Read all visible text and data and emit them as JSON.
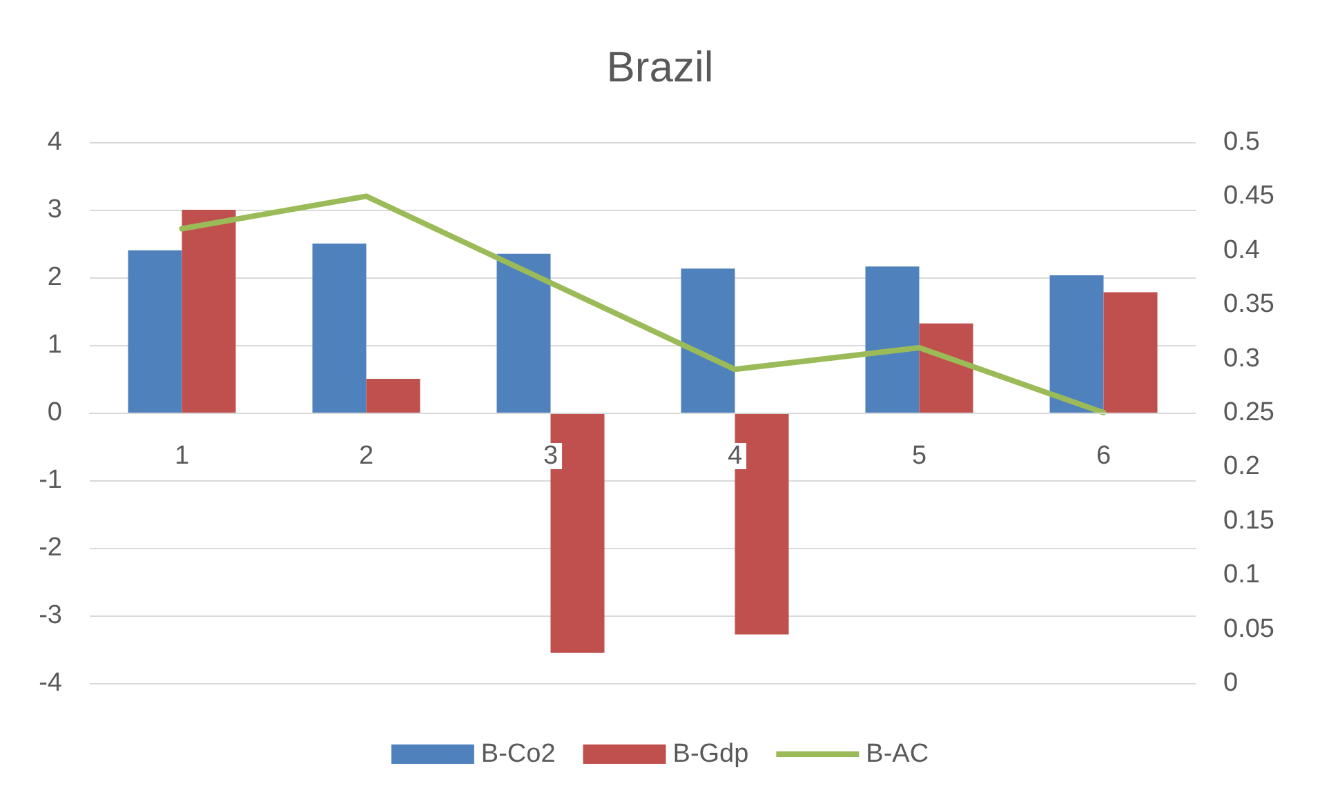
{
  "chart_data": {
    "type": "bar",
    "title": "Brazil",
    "categories": [
      "1",
      "2",
      "3",
      "4",
      "5",
      "6"
    ],
    "series": [
      {
        "name": "B-Co2",
        "color": "#4f81bd",
        "values": [
          2.4,
          2.5,
          2.35,
          2.13,
          2.16,
          2.03
        ]
      },
      {
        "name": "B-Gdp",
        "color": "#c0504d",
        "values": [
          3.0,
          0.5,
          -3.55,
          -3.28,
          1.32,
          1.78
        ]
      },
      {
        "name": "B-AC",
        "type": "line",
        "axis": "y2",
        "color": "#9bbb59",
        "marker": "none",
        "values": [
          0.42,
          0.45,
          0.37,
          0.29,
          0.31,
          0.25
        ]
      }
    ],
    "ylim": [
      -4,
      4
    ],
    "yticks": [
      -4,
      -3,
      -2,
      -1,
      0,
      1,
      2,
      3,
      4
    ],
    "y2lim": [
      0,
      0.5
    ],
    "y2ticks": [
      0,
      0.05,
      0.1,
      0.15,
      0.2,
      0.25,
      0.3,
      0.35,
      0.4,
      0.45,
      0.5
    ],
    "grid": "y",
    "legend": "bottom"
  }
}
